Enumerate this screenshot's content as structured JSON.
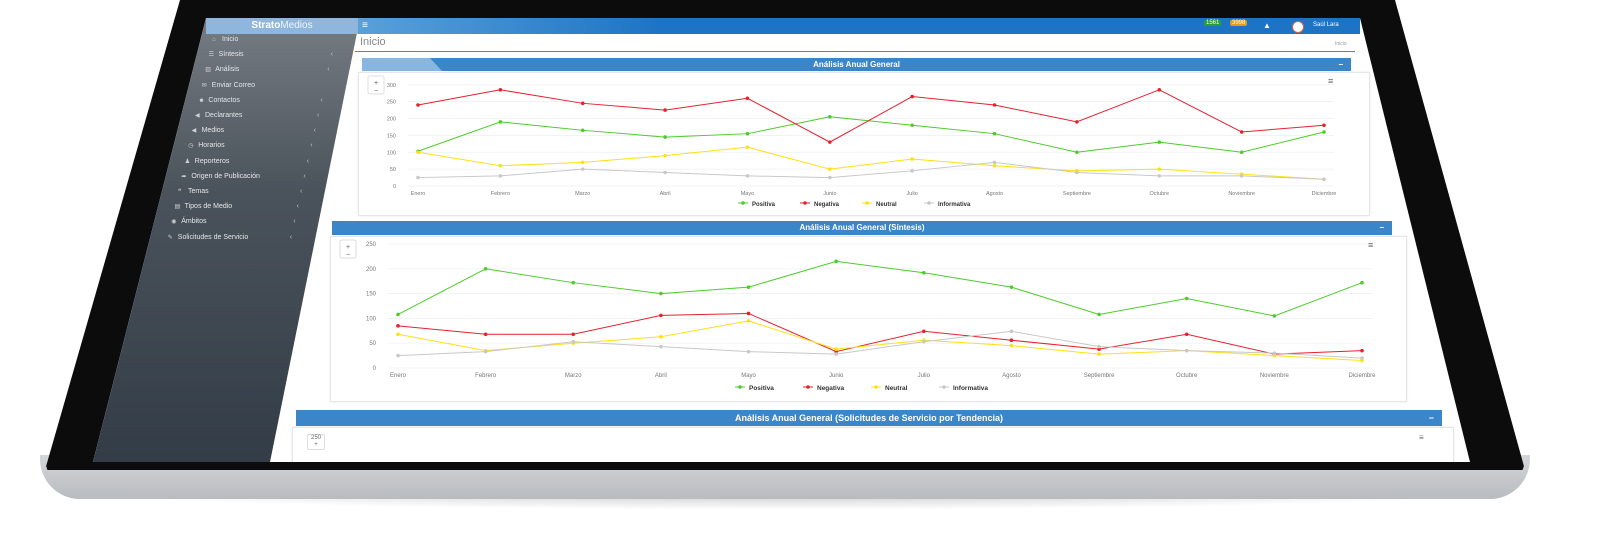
{
  "app": {
    "brand_bold": "Strato",
    "brand_light": "Medios",
    "page_title": "Inicio",
    "breadcrumb": "Inicio"
  },
  "header": {
    "badge_green": "1561",
    "badge_orange": "3998",
    "user_name": "Saúl Lara"
  },
  "sidebar": {
    "items": [
      {
        "label": "Inicio",
        "icon": "home-icon",
        "chevron": false
      },
      {
        "label": "Síntesis",
        "icon": "list-icon",
        "chevron": true
      },
      {
        "label": "Análisis",
        "icon": "bar-chart-icon",
        "chevron": true
      },
      {
        "label": "Enviar Correo",
        "icon": "envelope-icon",
        "chevron": false
      },
      {
        "label": "Contactos",
        "icon": "users-icon",
        "chevron": true
      },
      {
        "label": "Declarantes",
        "icon": "megaphone-icon",
        "chevron": true
      },
      {
        "label": "Medios",
        "icon": "bullhorn-icon",
        "chevron": true
      },
      {
        "label": "Horarios",
        "icon": "clock-icon",
        "chevron": true
      },
      {
        "label": "Reporteros",
        "icon": "user-icon",
        "chevron": true
      },
      {
        "label": "Origen de Publicación",
        "icon": "share-icon",
        "chevron": true
      },
      {
        "label": "Temas",
        "icon": "comments-icon",
        "chevron": true
      },
      {
        "label": "Tipos de Medio",
        "icon": "newspaper-icon",
        "chevron": true
      },
      {
        "label": "Ámbitos",
        "icon": "eye-icon",
        "chevron": true
      },
      {
        "label": "Solicitudes de Servicio",
        "icon": "wrench-icon",
        "chevron": true
      }
    ]
  },
  "legend": [
    "Positiva",
    "Negativa",
    "Neutral",
    "Informativa"
  ],
  "colors": {
    "Positiva": "#4dcc2a",
    "Negativa": "#e8202f",
    "Neutral": "#ffe014",
    "Informativa": "#c8c8c8",
    "header": "#3a86c8"
  },
  "chart_data": [
    {
      "type": "line",
      "title": "Análisis Anual General",
      "categories": [
        "Enero",
        "Febrero",
        "Marzo",
        "Abril",
        "Mayo",
        "Junio",
        "Julio",
        "Agosto",
        "Septiembre",
        "Octubre",
        "Noviembre",
        "Diciembre"
      ],
      "y_ticks": [
        0,
        50,
        100,
        150,
        200,
        250,
        300
      ],
      "ylim": [
        0,
        320
      ],
      "series": [
        {
          "name": "Positiva",
          "values": [
            103,
            190,
            165,
            145,
            155,
            205,
            180,
            155,
            100,
            130,
            100,
            160
          ]
        },
        {
          "name": "Negativa",
          "values": [
            240,
            285,
            245,
            225,
            260,
            130,
            265,
            240,
            190,
            285,
            160,
            180
          ]
        },
        {
          "name": "Neutral",
          "values": [
            100,
            60,
            70,
            90,
            115,
            50,
            80,
            60,
            45,
            50,
            35,
            20
          ]
        },
        {
          "name": "Informativa",
          "values": [
            25,
            30,
            50,
            40,
            30,
            25,
            45,
            70,
            40,
            30,
            30,
            20
          ]
        }
      ]
    },
    {
      "type": "line",
      "title": "Análisis Anual General (Síntesis)",
      "categories": [
        "Enero",
        "Febrero",
        "Marzo",
        "Abril",
        "Mayo",
        "Junio",
        "Julio",
        "Agosto",
        "Septiembre",
        "Octubre",
        "Noviembre",
        "Diciembre"
      ],
      "y_ticks": [
        0,
        50,
        100,
        150,
        200,
        250
      ],
      "ylim": [
        0,
        250
      ],
      "series": [
        {
          "name": "Positiva",
          "values": [
            108,
            200,
            172,
            150,
            163,
            215,
            192,
            163,
            108,
            140,
            105,
            172
          ]
        },
        {
          "name": "Negativa",
          "values": [
            85,
            68,
            68,
            106,
            110,
            33,
            74,
            56,
            38,
            68,
            28,
            35
          ]
        },
        {
          "name": "Neutral",
          "values": [
            68,
            35,
            50,
            63,
            95,
            38,
            56,
            45,
            28,
            35,
            25,
            15
          ]
        },
        {
          "name": "Informativa",
          "values": [
            25,
            33,
            53,
            43,
            33,
            28,
            53,
            74,
            43,
            35,
            30,
            20
          ]
        }
      ]
    }
  ],
  "panel3": {
    "title": "Análisis Anual General (Solicitudes de Servicio por Tendencia)",
    "y_tick": "250"
  }
}
